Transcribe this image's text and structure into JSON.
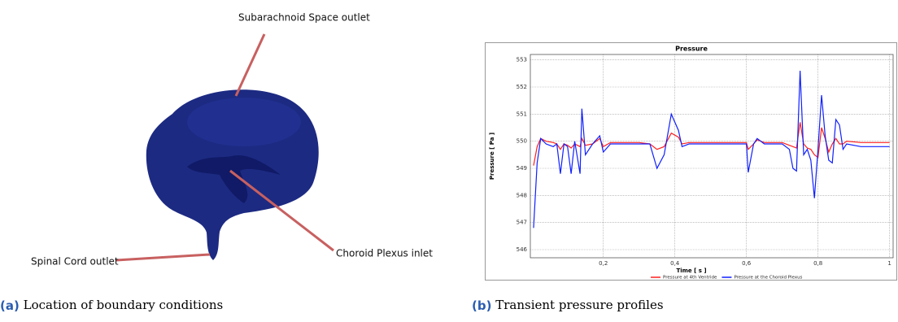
{
  "panel_a": {
    "labels": [
      "Subarachnoid Space outlet",
      "Spinal Cord outlet",
      "Choroid Plexus inlet"
    ]
  },
  "captions": [
    {
      "label": "(a)",
      "text": "Location of boundary conditions"
    },
    {
      "label": "(b)",
      "text": "Transient pressure profiles"
    }
  ],
  "chart_data": {
    "type": "line",
    "title": "Pressure",
    "x_label": "Time [ s ]",
    "y_label": "Pressure [ Pa ]",
    "x": [
      0.005,
      0.015,
      0.025,
      0.04,
      0.06,
      0.07,
      0.08,
      0.09,
      0.1,
      0.11,
      0.12,
      0.135,
      0.14,
      0.15,
      0.17,
      0.19,
      0.2,
      0.22,
      0.3,
      0.33,
      0.35,
      0.37,
      0.39,
      0.41,
      0.42,
      0.44,
      0.5,
      0.6,
      0.605,
      0.62,
      0.63,
      0.65,
      0.7,
      0.72,
      0.73,
      0.74,
      0.75,
      0.76,
      0.77,
      0.78,
      0.79,
      0.8,
      0.81,
      0.82,
      0.83,
      0.84,
      0.85,
      0.86,
      0.87,
      0.88,
      0.92,
      1.0
    ],
    "series": [
      {
        "name": "Pressure at 4th Ventride",
        "color": "#ff2020",
        "values": [
          549.1,
          549.8,
          550.1,
          550.0,
          549.95,
          549.9,
          549.7,
          549.9,
          549.85,
          549.75,
          549.9,
          549.8,
          550.1,
          549.85,
          549.9,
          550.1,
          549.8,
          549.95,
          549.95,
          549.9,
          549.7,
          549.8,
          550.3,
          550.15,
          549.9,
          549.95,
          549.95,
          549.95,
          549.7,
          549.9,
          550.05,
          549.95,
          549.95,
          549.85,
          549.8,
          549.75,
          550.7,
          549.9,
          549.75,
          549.7,
          549.5,
          549.4,
          550.5,
          550.1,
          549.6,
          549.9,
          550.1,
          549.9,
          549.9,
          550.0,
          549.95,
          549.95
        ]
      },
      {
        "name": "Pressure at the Choroid Plexus",
        "color": "#1020ff",
        "values": [
          546.8,
          549.2,
          550.1,
          549.9,
          549.8,
          549.9,
          548.8,
          549.9,
          549.8,
          548.8,
          550.0,
          548.8,
          551.2,
          549.5,
          549.9,
          550.2,
          549.6,
          549.9,
          549.9,
          549.9,
          549.0,
          549.5,
          551.0,
          550.4,
          549.8,
          549.9,
          549.9,
          549.9,
          548.85,
          549.9,
          550.1,
          549.9,
          549.9,
          549.7,
          549.0,
          548.9,
          552.6,
          549.5,
          549.7,
          549.3,
          547.9,
          549.7,
          551.7,
          550.2,
          549.3,
          549.2,
          550.8,
          550.6,
          549.7,
          549.9,
          549.8,
          549.8
        ]
      }
    ],
    "xlim": [
      -0.004,
      1.01
    ],
    "ylim": [
      545.7,
      553.2
    ],
    "xticks": [
      {
        "value": 0.2,
        "label": "0,2"
      },
      {
        "value": 0.4,
        "label": "0,4"
      },
      {
        "value": 0.6,
        "label": "0,6"
      },
      {
        "value": 0.8,
        "label": "0,8"
      },
      1
    ],
    "yticks": [
      546,
      547,
      548,
      549,
      550,
      551,
      552,
      553
    ],
    "grid": true
  }
}
